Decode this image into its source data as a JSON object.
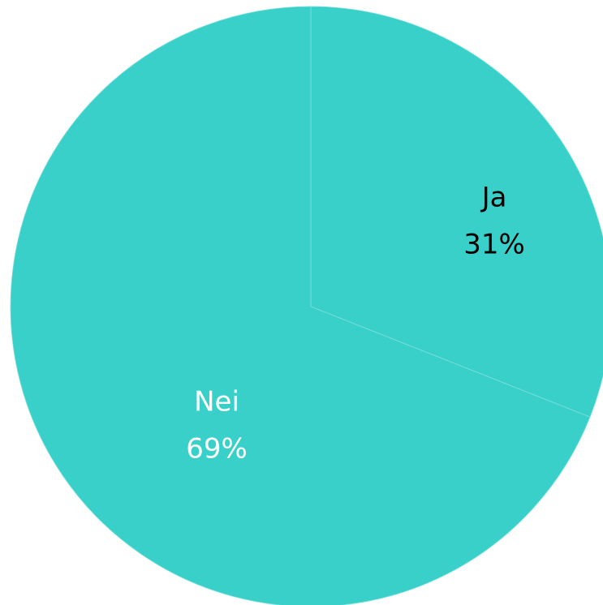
{
  "chart_data": {
    "type": "pie",
    "categories": [
      "Ja",
      "Nei"
    ],
    "values": [
      31,
      69
    ],
    "value_labels": [
      "31%",
      "69%"
    ],
    "colors": [
      "#3ad0ca",
      "#3ad0ca"
    ],
    "label_colors": [
      "#000000",
      "#ffffff"
    ]
  }
}
